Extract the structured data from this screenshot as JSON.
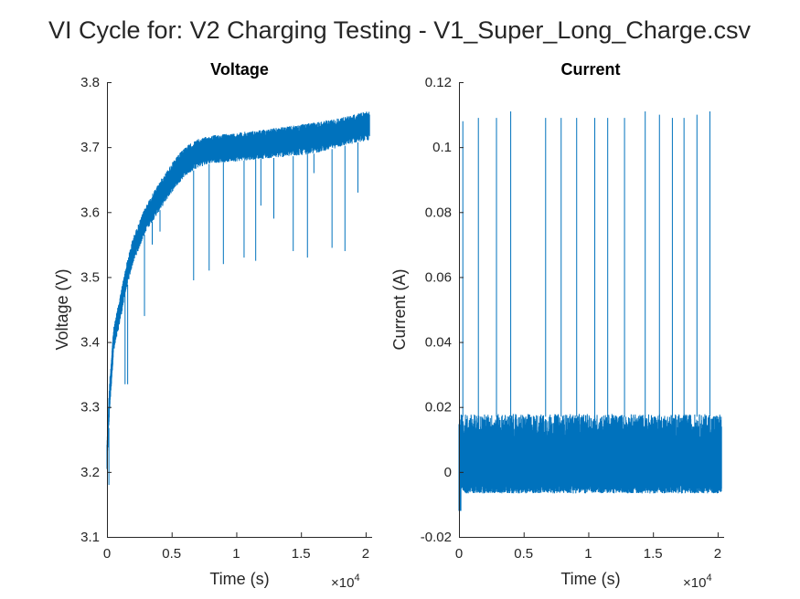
{
  "figure_title": "VI Cycle for: V2 Charging Testing - V1_Super_Long_Charge.csv",
  "chart_data": [
    {
      "type": "line",
      "title": "Voltage",
      "xlabel": "Time (s)",
      "ylabel": "Voltage (V)",
      "x_exponent_label": "×10",
      "x_exponent_power": "4",
      "xlim": [
        0,
        20500
      ],
      "ylim": [
        3.1,
        3.8
      ],
      "xticks": [
        0,
        5000,
        10000,
        15000,
        20000
      ],
      "xtick_labels": [
        "0",
        "0.5",
        "1",
        "1.5",
        "2"
      ],
      "yticks": [
        3.1,
        3.2,
        3.3,
        3.4,
        3.5,
        3.6,
        3.7,
        3.8
      ],
      "ytick_labels": [
        "3.1",
        "3.2",
        "3.3",
        "3.4",
        "3.5",
        "3.6",
        "3.7",
        "3.8"
      ],
      "grid": false,
      "series_color": "#0072BD",
      "envelope": {
        "x": [
          0,
          200,
          500,
          1000,
          1500,
          2000,
          3000,
          4000,
          5000,
          6000,
          7000,
          8000,
          10000,
          12000,
          14000,
          16000,
          18000,
          19500,
          20300
        ],
        "upper": [
          3.25,
          3.34,
          3.42,
          3.47,
          3.52,
          3.56,
          3.61,
          3.645,
          3.675,
          3.7,
          3.712,
          3.718,
          3.722,
          3.727,
          3.732,
          3.738,
          3.745,
          3.752,
          3.757
        ],
        "lower": [
          3.2,
          3.29,
          3.38,
          3.43,
          3.48,
          3.52,
          3.57,
          3.6,
          3.63,
          3.655,
          3.668,
          3.675,
          3.678,
          3.682,
          3.685,
          3.69,
          3.7,
          3.708,
          3.71
        ]
      },
      "dips": [
        {
          "x": 150,
          "y": 3.18
        },
        {
          "x": 1400,
          "y": 3.335
        },
        {
          "x": 1600,
          "y": 3.335
        },
        {
          "x": 2400,
          "y": 3.55
        },
        {
          "x": 2900,
          "y": 3.44
        },
        {
          "x": 3500,
          "y": 3.55
        },
        {
          "x": 4100,
          "y": 3.57
        },
        {
          "x": 6700,
          "y": 3.495
        },
        {
          "x": 7900,
          "y": 3.51
        },
        {
          "x": 9000,
          "y": 3.52
        },
        {
          "x": 10600,
          "y": 3.53
        },
        {
          "x": 11500,
          "y": 3.525
        },
        {
          "x": 11900,
          "y": 3.61
        },
        {
          "x": 12900,
          "y": 3.59
        },
        {
          "x": 14400,
          "y": 3.54
        },
        {
          "x": 15500,
          "y": 3.53
        },
        {
          "x": 16000,
          "y": 3.66
        },
        {
          "x": 17400,
          "y": 3.545
        },
        {
          "x": 18400,
          "y": 3.54
        },
        {
          "x": 19400,
          "y": 3.63
        }
      ]
    },
    {
      "type": "line",
      "title": "Current",
      "xlabel": "Time (s)",
      "ylabel": "Current (A)",
      "x_exponent_label": "×10",
      "x_exponent_power": "4",
      "xlim": [
        0,
        20500
      ],
      "ylim": [
        -0.02,
        0.12
      ],
      "xticks": [
        0,
        5000,
        10000,
        15000,
        20000
      ],
      "xtick_labels": [
        "0",
        "0.5",
        "1",
        "1.5",
        "2"
      ],
      "yticks": [
        -0.02,
        0,
        0.02,
        0.04,
        0.06,
        0.08,
        0.1,
        0.12
      ],
      "ytick_labels": [
        "-0.02",
        "0",
        "0.02",
        "0.04",
        "0.06",
        "0.08",
        "0.1",
        "0.12"
      ],
      "grid": false,
      "series_color": "#0072BD",
      "band": {
        "upper": 0.017,
        "lower": -0.006
      },
      "spikes": [
        {
          "x": 300,
          "y": 0.108
        },
        {
          "x": 1500,
          "y": 0.109
        },
        {
          "x": 2900,
          "y": 0.109
        },
        {
          "x": 4000,
          "y": 0.111
        },
        {
          "x": 6700,
          "y": 0.109
        },
        {
          "x": 7900,
          "y": 0.109
        },
        {
          "x": 9100,
          "y": 0.109
        },
        {
          "x": 10500,
          "y": 0.109
        },
        {
          "x": 11500,
          "y": 0.109
        },
        {
          "x": 12800,
          "y": 0.109
        },
        {
          "x": 14400,
          "y": 0.111
        },
        {
          "x": 15500,
          "y": 0.11
        },
        {
          "x": 16500,
          "y": 0.109
        },
        {
          "x": 17400,
          "y": 0.109
        },
        {
          "x": 18400,
          "y": 0.11
        },
        {
          "x": 19400,
          "y": 0.111
        }
      ]
    }
  ]
}
